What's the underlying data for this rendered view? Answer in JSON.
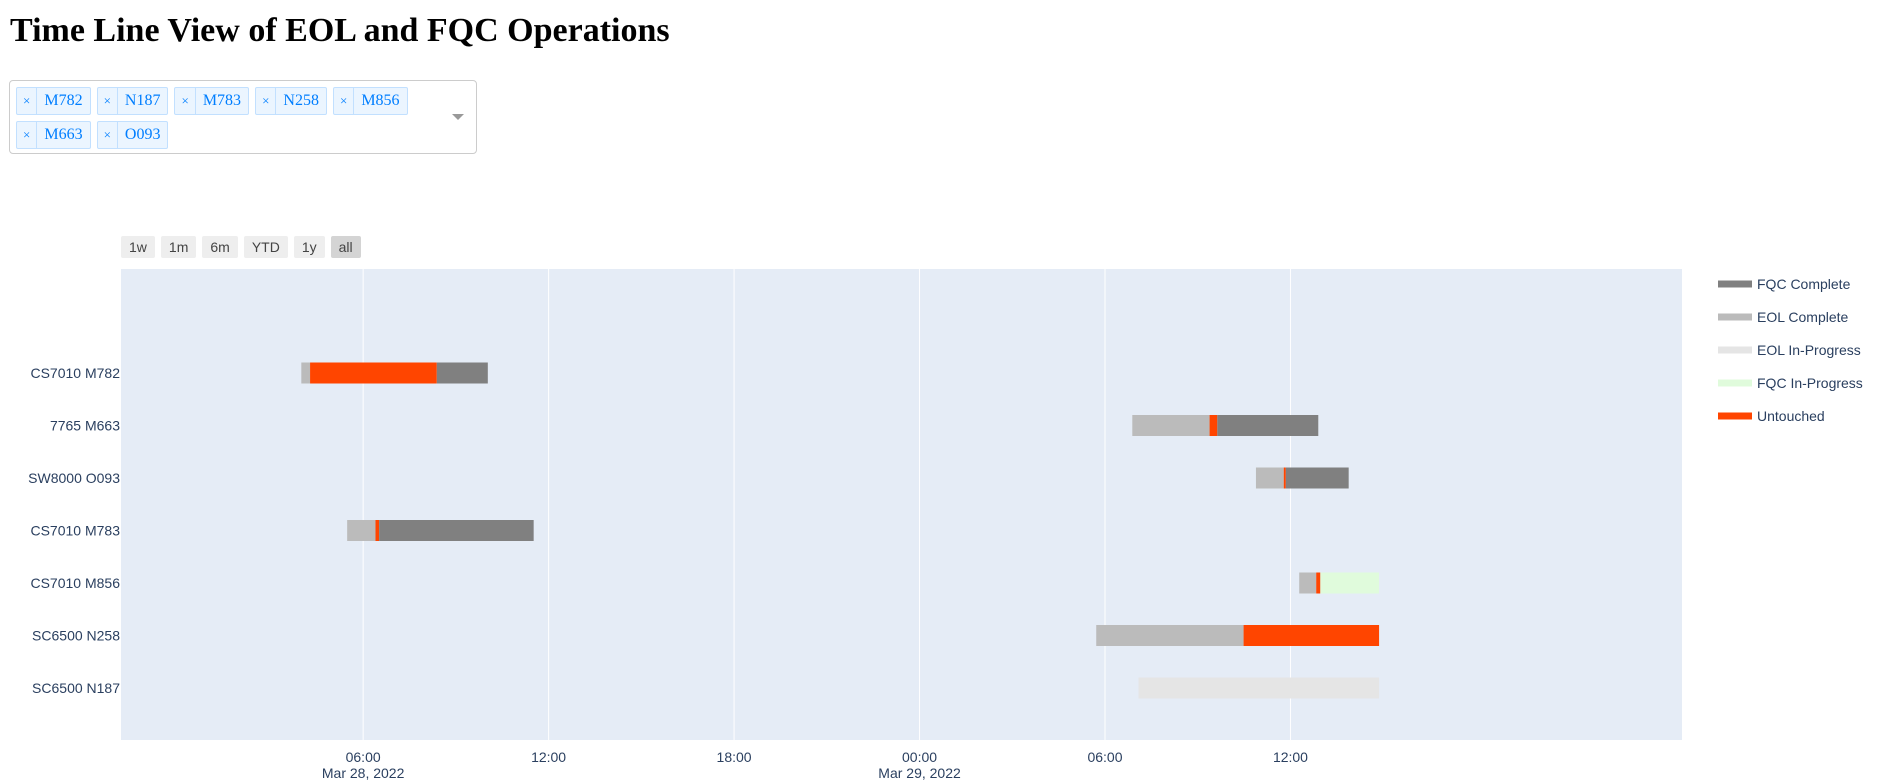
{
  "page": {
    "title": "Time Line View of EOL and FQC Operations"
  },
  "filter": {
    "selected": [
      "M782",
      "N187",
      "M783",
      "N258",
      "M856",
      "M663",
      "O093"
    ],
    "remove_symbol": "×"
  },
  "range_buttons": [
    {
      "label": "1w",
      "active": false
    },
    {
      "label": "1m",
      "active": false
    },
    {
      "label": "6m",
      "active": false
    },
    {
      "label": "YTD",
      "active": false
    },
    {
      "label": "1y",
      "active": false
    },
    {
      "label": "all",
      "active": true
    }
  ],
  "colors": {
    "FQC Complete": "#808080",
    "EOL Complete": "#bbbbbb",
    "EOL In-Progress": "#e5e5e5",
    "FQC In-Progress": "#e0fbdc",
    "Untouched": "#ff4500",
    "plot_bg": "#e5ecf6",
    "grid": "#ffffff"
  },
  "chart_data": {
    "type": "timeline",
    "title": "",
    "xlabel": "",
    "ylabel": "",
    "grid": true,
    "legend_position": "right",
    "x_range": [
      "2022-03-27 22:10",
      "2022-03-30 00:40"
    ],
    "x_ticks": [
      {
        "value": "2022-03-28 06:00",
        "line1": "06:00",
        "line2": "Mar 28, 2022"
      },
      {
        "value": "2022-03-28 12:00",
        "line1": "12:00",
        "line2": ""
      },
      {
        "value": "2022-03-28 18:00",
        "line1": "18:00",
        "line2": ""
      },
      {
        "value": "2022-03-29 00:00",
        "line1": "00:00",
        "line2": "Mar 29, 2022"
      },
      {
        "value": "2022-03-29 06:00",
        "line1": "06:00",
        "line2": ""
      },
      {
        "value": "2022-03-29 12:00",
        "line1": "12:00",
        "line2": ""
      }
    ],
    "categories": [
      "CS7010 M782",
      "7765 M663",
      "SW8000 O093",
      "CS7010 M783",
      "CS7010 M856",
      "SC6500 N258",
      "SC6500 N187"
    ],
    "legend": [
      "FQC Complete",
      "EOL Complete",
      "EOL In-Progress",
      "FQC In-Progress",
      "Untouched"
    ],
    "tasks": [
      {
        "row": "CS7010 M782",
        "status": "EOL Complete",
        "start": "2022-03-28 04:00",
        "end": "2022-03-28 04:17"
      },
      {
        "row": "CS7010 M782",
        "status": "Untouched",
        "start": "2022-03-28 04:17",
        "end": "2022-03-28 08:23"
      },
      {
        "row": "CS7010 M782",
        "status": "FQC Complete",
        "start": "2022-03-28 08:23",
        "end": "2022-03-28 10:02"
      },
      {
        "row": "7765 M663",
        "status": "EOL Complete",
        "start": "2022-03-29 06:53",
        "end": "2022-03-29 09:23"
      },
      {
        "row": "7765 M663",
        "status": "Untouched",
        "start": "2022-03-29 09:23",
        "end": "2022-03-29 09:38"
      },
      {
        "row": "7765 M663",
        "status": "FQC Complete",
        "start": "2022-03-29 09:38",
        "end": "2022-03-29 12:54"
      },
      {
        "row": "SW8000 O093",
        "status": "EOL Complete",
        "start": "2022-03-29 10:53",
        "end": "2022-03-29 11:47"
      },
      {
        "row": "SW8000 O093",
        "status": "Untouched",
        "start": "2022-03-29 11:47",
        "end": "2022-03-29 11:51"
      },
      {
        "row": "SW8000 O093",
        "status": "FQC Complete",
        "start": "2022-03-29 11:51",
        "end": "2022-03-29 13:53"
      },
      {
        "row": "CS7010 M783",
        "status": "EOL Complete",
        "start": "2022-03-28 05:29",
        "end": "2022-03-28 06:24"
      },
      {
        "row": "CS7010 M783",
        "status": "Untouched",
        "start": "2022-03-28 06:24",
        "end": "2022-03-28 06:31"
      },
      {
        "row": "CS7010 M783",
        "status": "FQC Complete",
        "start": "2022-03-28 06:31",
        "end": "2022-03-28 11:31"
      },
      {
        "row": "CS7010 M856",
        "status": "EOL Complete",
        "start": "2022-03-29 12:17",
        "end": "2022-03-29 12:50"
      },
      {
        "row": "CS7010 M856",
        "status": "Untouched",
        "start": "2022-03-29 12:50",
        "end": "2022-03-29 12:58"
      },
      {
        "row": "CS7010 M856",
        "status": "FQC In-Progress",
        "start": "2022-03-29 12:58",
        "end": "2022-03-29 14:52"
      },
      {
        "row": "SC6500 N258",
        "status": "EOL Complete",
        "start": "2022-03-29 05:43",
        "end": "2022-03-29 10:29"
      },
      {
        "row": "SC6500 N258",
        "status": "Untouched",
        "start": "2022-03-29 10:29",
        "end": "2022-03-29 14:52"
      },
      {
        "row": "SC6500 N187",
        "status": "EOL In-Progress",
        "start": "2022-03-29 07:05",
        "end": "2022-03-29 14:52"
      }
    ]
  }
}
